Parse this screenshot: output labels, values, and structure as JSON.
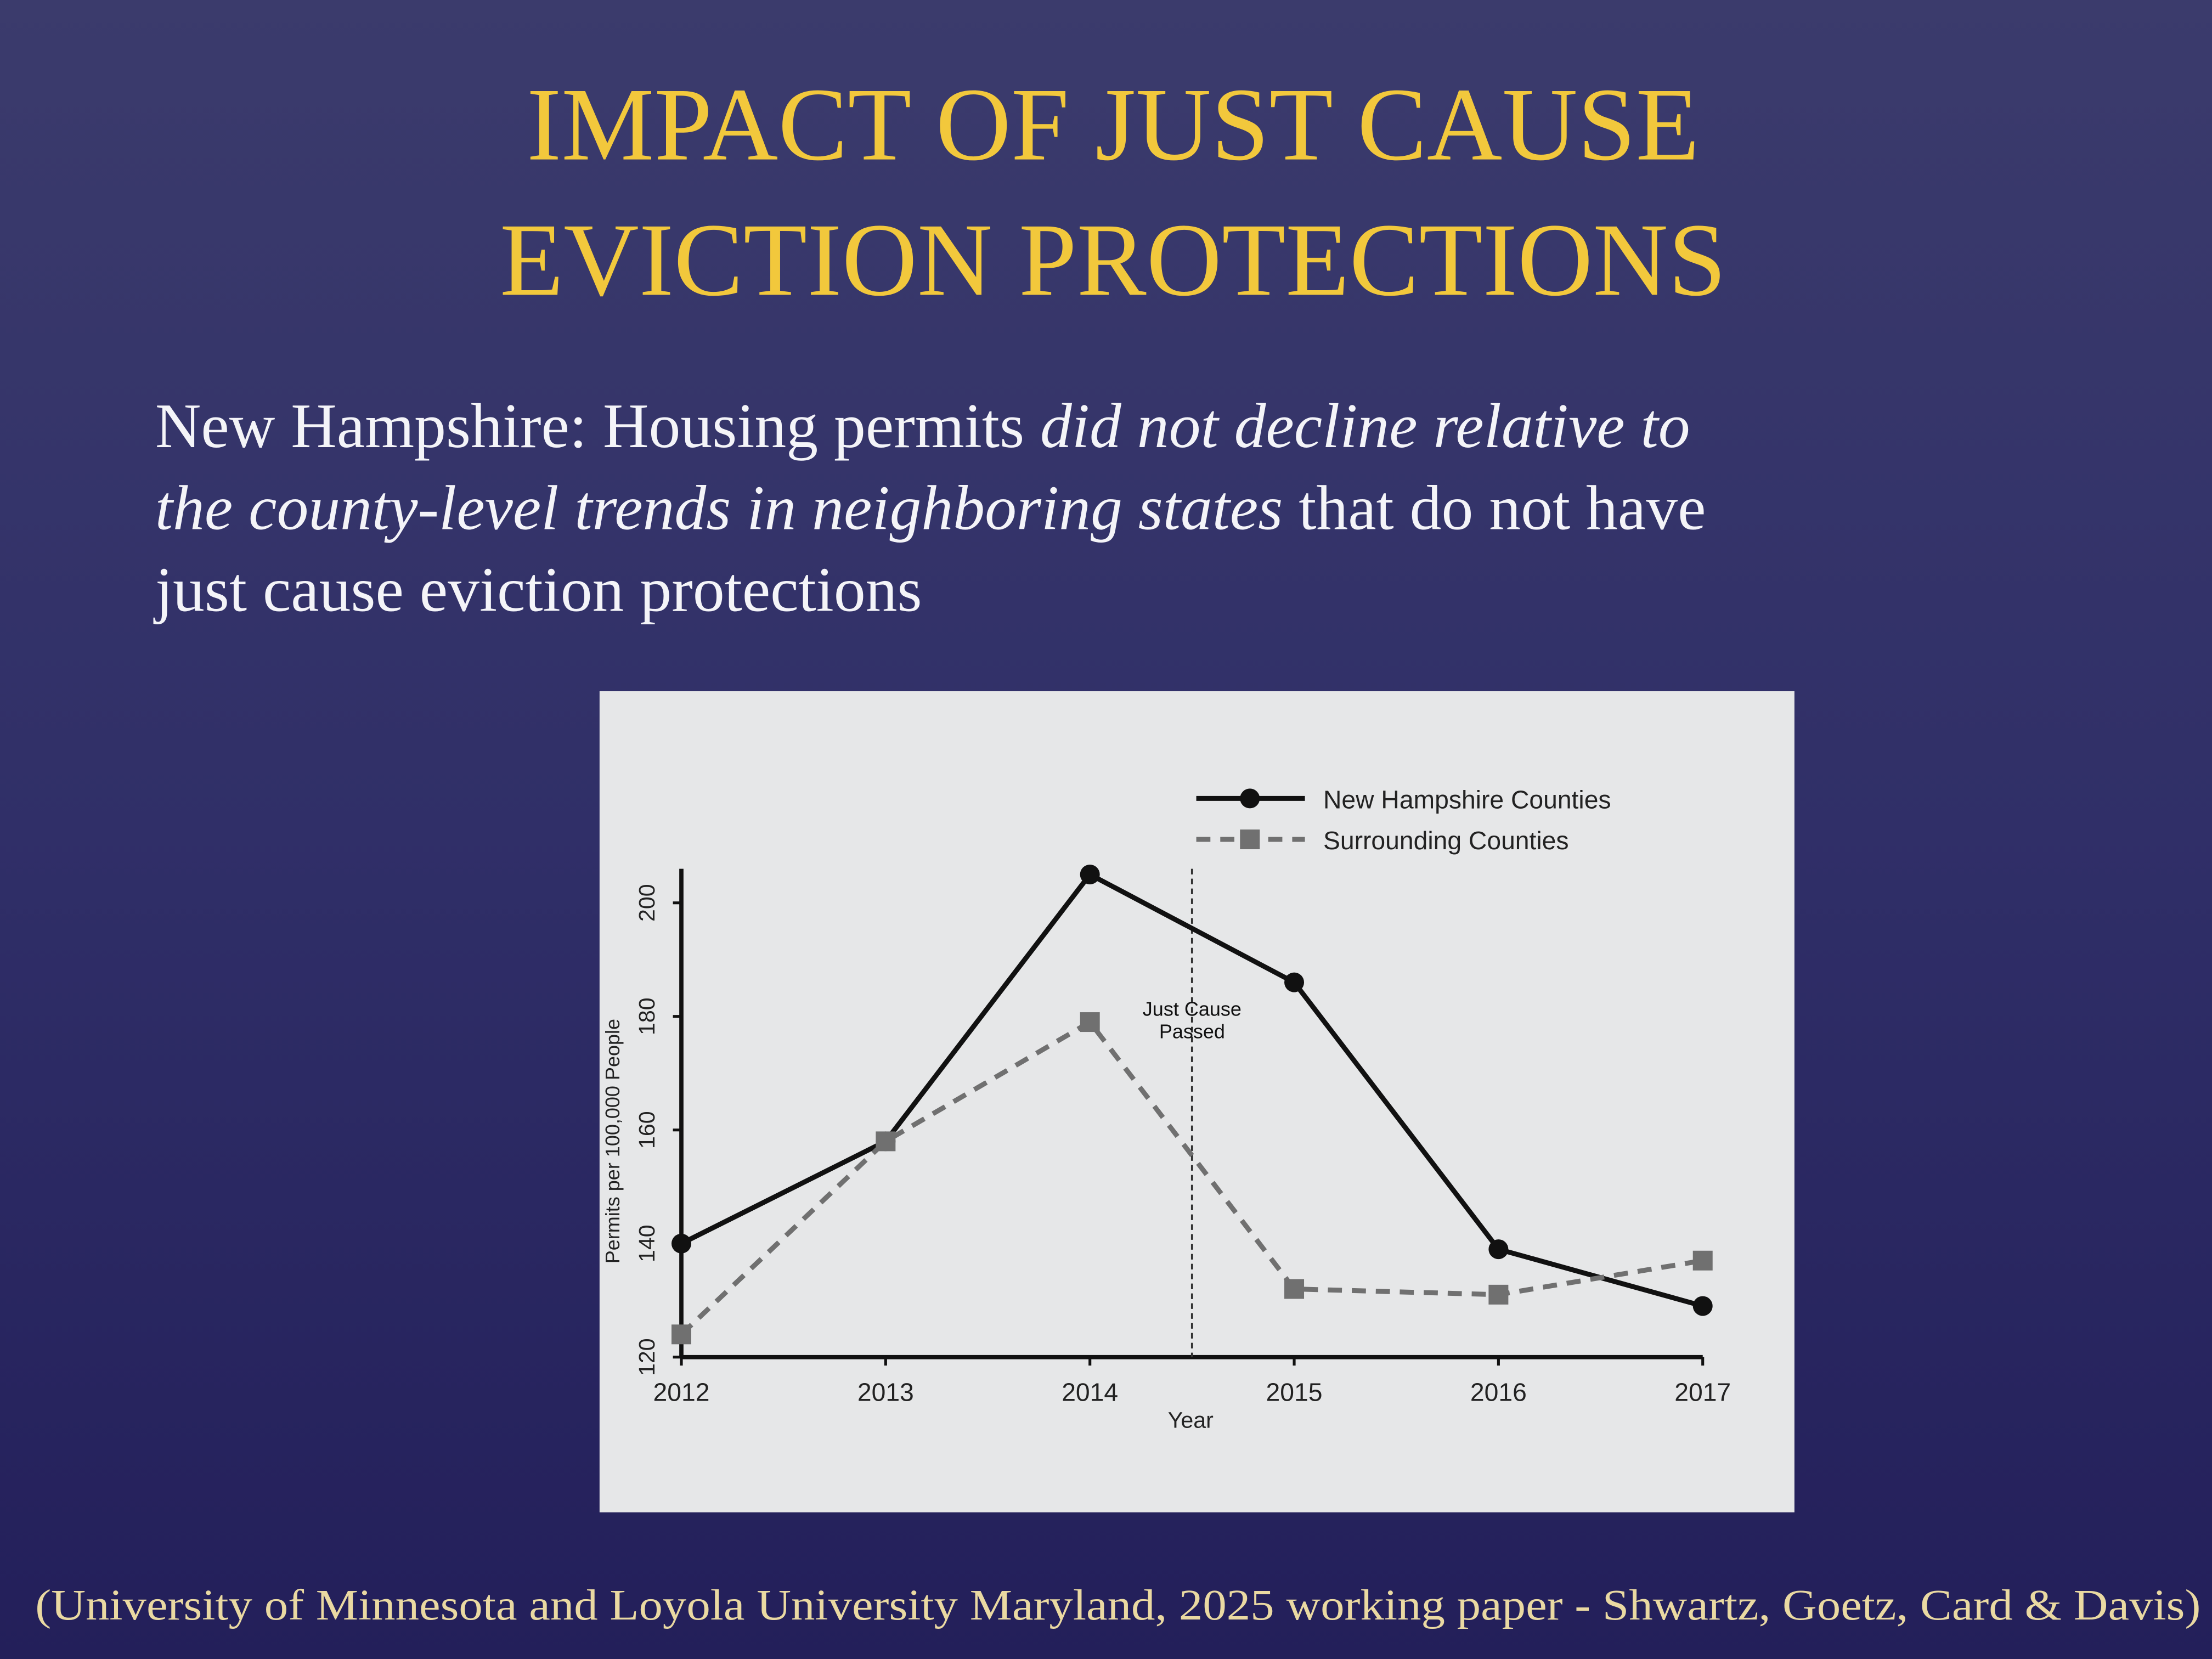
{
  "title": [
    "IMPACT OF JUST CAUSE",
    "EVICTION PROTECTIONS"
  ],
  "subtitle": [
    [
      {
        "text": "New Hampshire: Housing permits ",
        "italic": false
      },
      {
        "text": "did not decline relative to",
        "italic": true
      }
    ],
    [
      {
        "text": "the county-level trends in neighboring states",
        "italic": true
      },
      {
        "text": " that do not have",
        "italic": false
      }
    ],
    [
      {
        "text": "just cause eviction protections",
        "italic": false
      }
    ]
  ],
  "chart_data": {
    "type": "line",
    "x": [
      2012,
      2013,
      2014,
      2015,
      2016,
      2017
    ],
    "xlim": [
      2012,
      2017
    ],
    "xticks": [
      2012,
      2013,
      2014,
      2015,
      2016,
      2017
    ],
    "ylim": [
      120,
      206
    ],
    "yticks": [
      120,
      140,
      160,
      180,
      200
    ],
    "x_label": "Year",
    "y_label": "Permits per 100,000 People",
    "grid": false,
    "legend": "upper right",
    "series": [
      {
        "name": "New Hampshire Counties",
        "color": "#111111",
        "dashed": false,
        "marker": "circle",
        "values": [
          140,
          158,
          205,
          186,
          139,
          129
        ]
      },
      {
        "name": "Surrounding Counties",
        "color": "#707070",
        "dashed": true,
        "marker": "square",
        "values": [
          124,
          158,
          179,
          132,
          131,
          137
        ]
      }
    ],
    "annotation": {
      "text": [
        "Just Cause",
        "Passed"
      ],
      "x": 2014.5
    }
  },
  "footer": "(University of Minnesota and Loyola University Maryland, 2025 working paper - Shwartz, Goetz, Card & Davis)"
}
